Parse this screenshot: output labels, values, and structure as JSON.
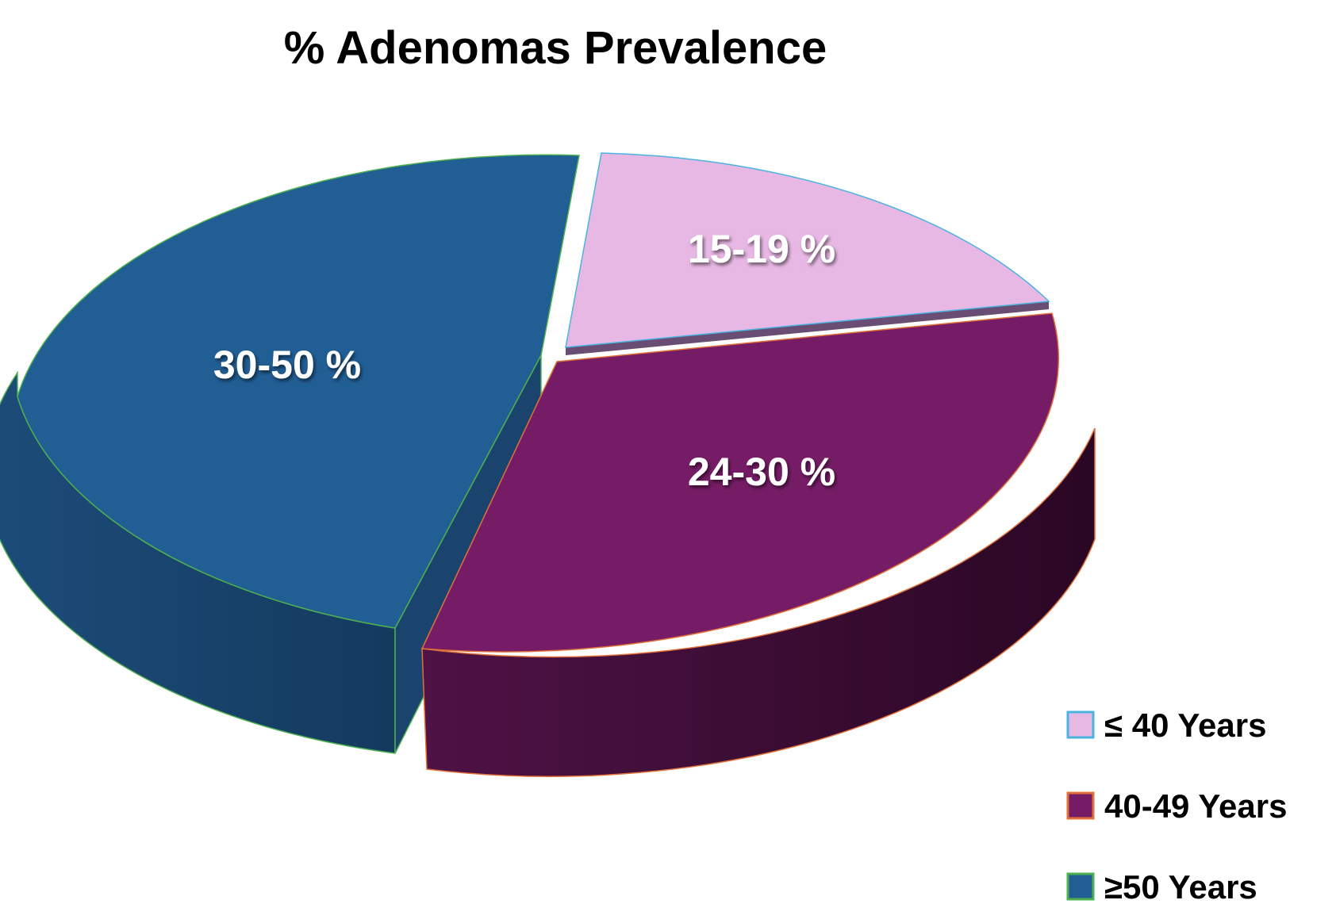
{
  "chart_data": {
    "type": "pie",
    "title": "% Adenomas Prevalence",
    "style": "3d-exploded",
    "legend_position": "bottom-right",
    "slices": [
      {
        "name": "≤ 40 Years",
        "label": "15-19 %",
        "range": [
          15,
          19
        ],
        "value": 17,
        "color": "#e8b8e4",
        "side_color": "#6a4d72",
        "edge_color": "#4ab3e0"
      },
      {
        "name": "40-49 Years",
        "label": "24-30 %",
        "range": [
          24,
          30
        ],
        "value": 27,
        "color": "#761c66",
        "side_color": "#3b0a33",
        "edge_color": "#e0703a"
      },
      {
        "name": "≥50 Years",
        "label": "30-50 %",
        "range": [
          30,
          50
        ],
        "value": 40,
        "color": "#215e94",
        "side_color": "#163e66",
        "edge_color": "#4caf50"
      }
    ]
  }
}
